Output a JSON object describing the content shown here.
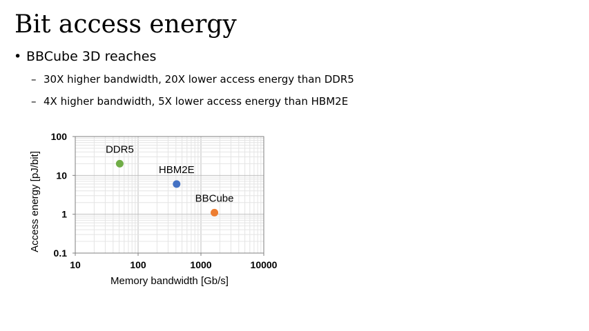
{
  "slide": {
    "title": "Bit access energy",
    "bullet": "BBCube 3D reaches",
    "sub_bullets": [
      "30X higher bandwidth, 20X lower access energy than DDR5",
      "4X higher bandwidth, 5X lower access energy than HBM2E"
    ],
    "bullet_marker": "•",
    "sub_bullet_marker": "–"
  },
  "chart_data": {
    "type": "scatter",
    "xlabel": "Memory bandwidth [Gb/s]",
    "ylabel": "Access energy [pJ/bit]",
    "xscale": "log",
    "yscale": "log",
    "xlim": [
      10,
      10000
    ],
    "ylim": [
      0.1,
      100
    ],
    "xticks": [
      10,
      100,
      1000,
      10000
    ],
    "xtick_labels": [
      "10",
      "100",
      "1000",
      "10000"
    ],
    "yticks": [
      0.1,
      1,
      10,
      100
    ],
    "ytick_labels": [
      "0.1",
      "1",
      "10",
      "100"
    ],
    "grid": true,
    "legend": "none",
    "points": [
      {
        "label": "DDR5",
        "x": 51,
        "y": 20,
        "color": "#70ad47"
      },
      {
        "label": "HBM2E",
        "x": 410,
        "y": 6,
        "color": "#4472c4"
      },
      {
        "label": "BBCube",
        "x": 1640,
        "y": 1.1,
        "color": "#ed7d31"
      }
    ]
  }
}
